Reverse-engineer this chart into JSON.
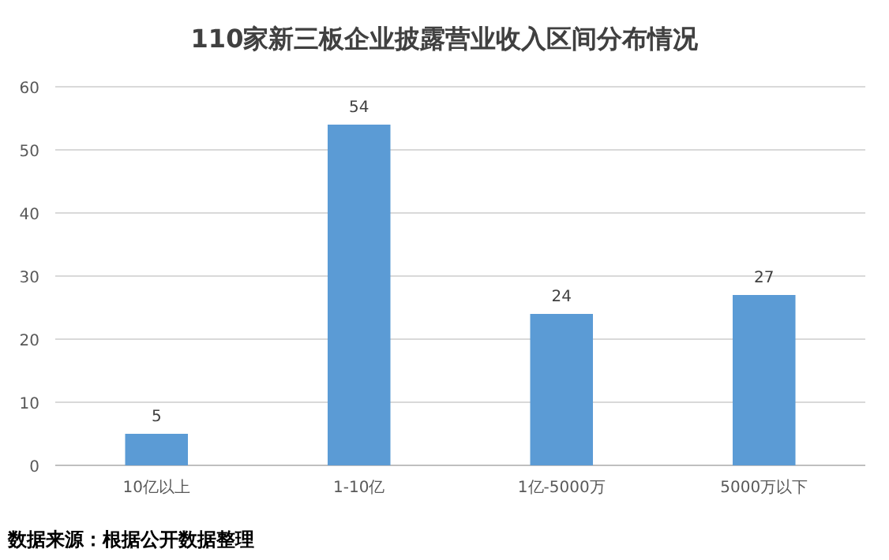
{
  "chart_data": {
    "type": "bar",
    "title": "110家新三板企业披露营业收入区间分布情况",
    "categories": [
      "10亿以上",
      "1-10亿",
      "1亿-5000万",
      "5000万以下"
    ],
    "values": [
      5,
      54,
      24,
      27
    ],
    "color": "#5b9bd5",
    "ylim": [
      0,
      60
    ],
    "yticks": [
      0,
      10,
      20,
      30,
      40,
      50,
      60
    ],
    "grid": "y",
    "data_labels": true,
    "annotations": [
      "数据来源：根据公开数据整理"
    ]
  }
}
